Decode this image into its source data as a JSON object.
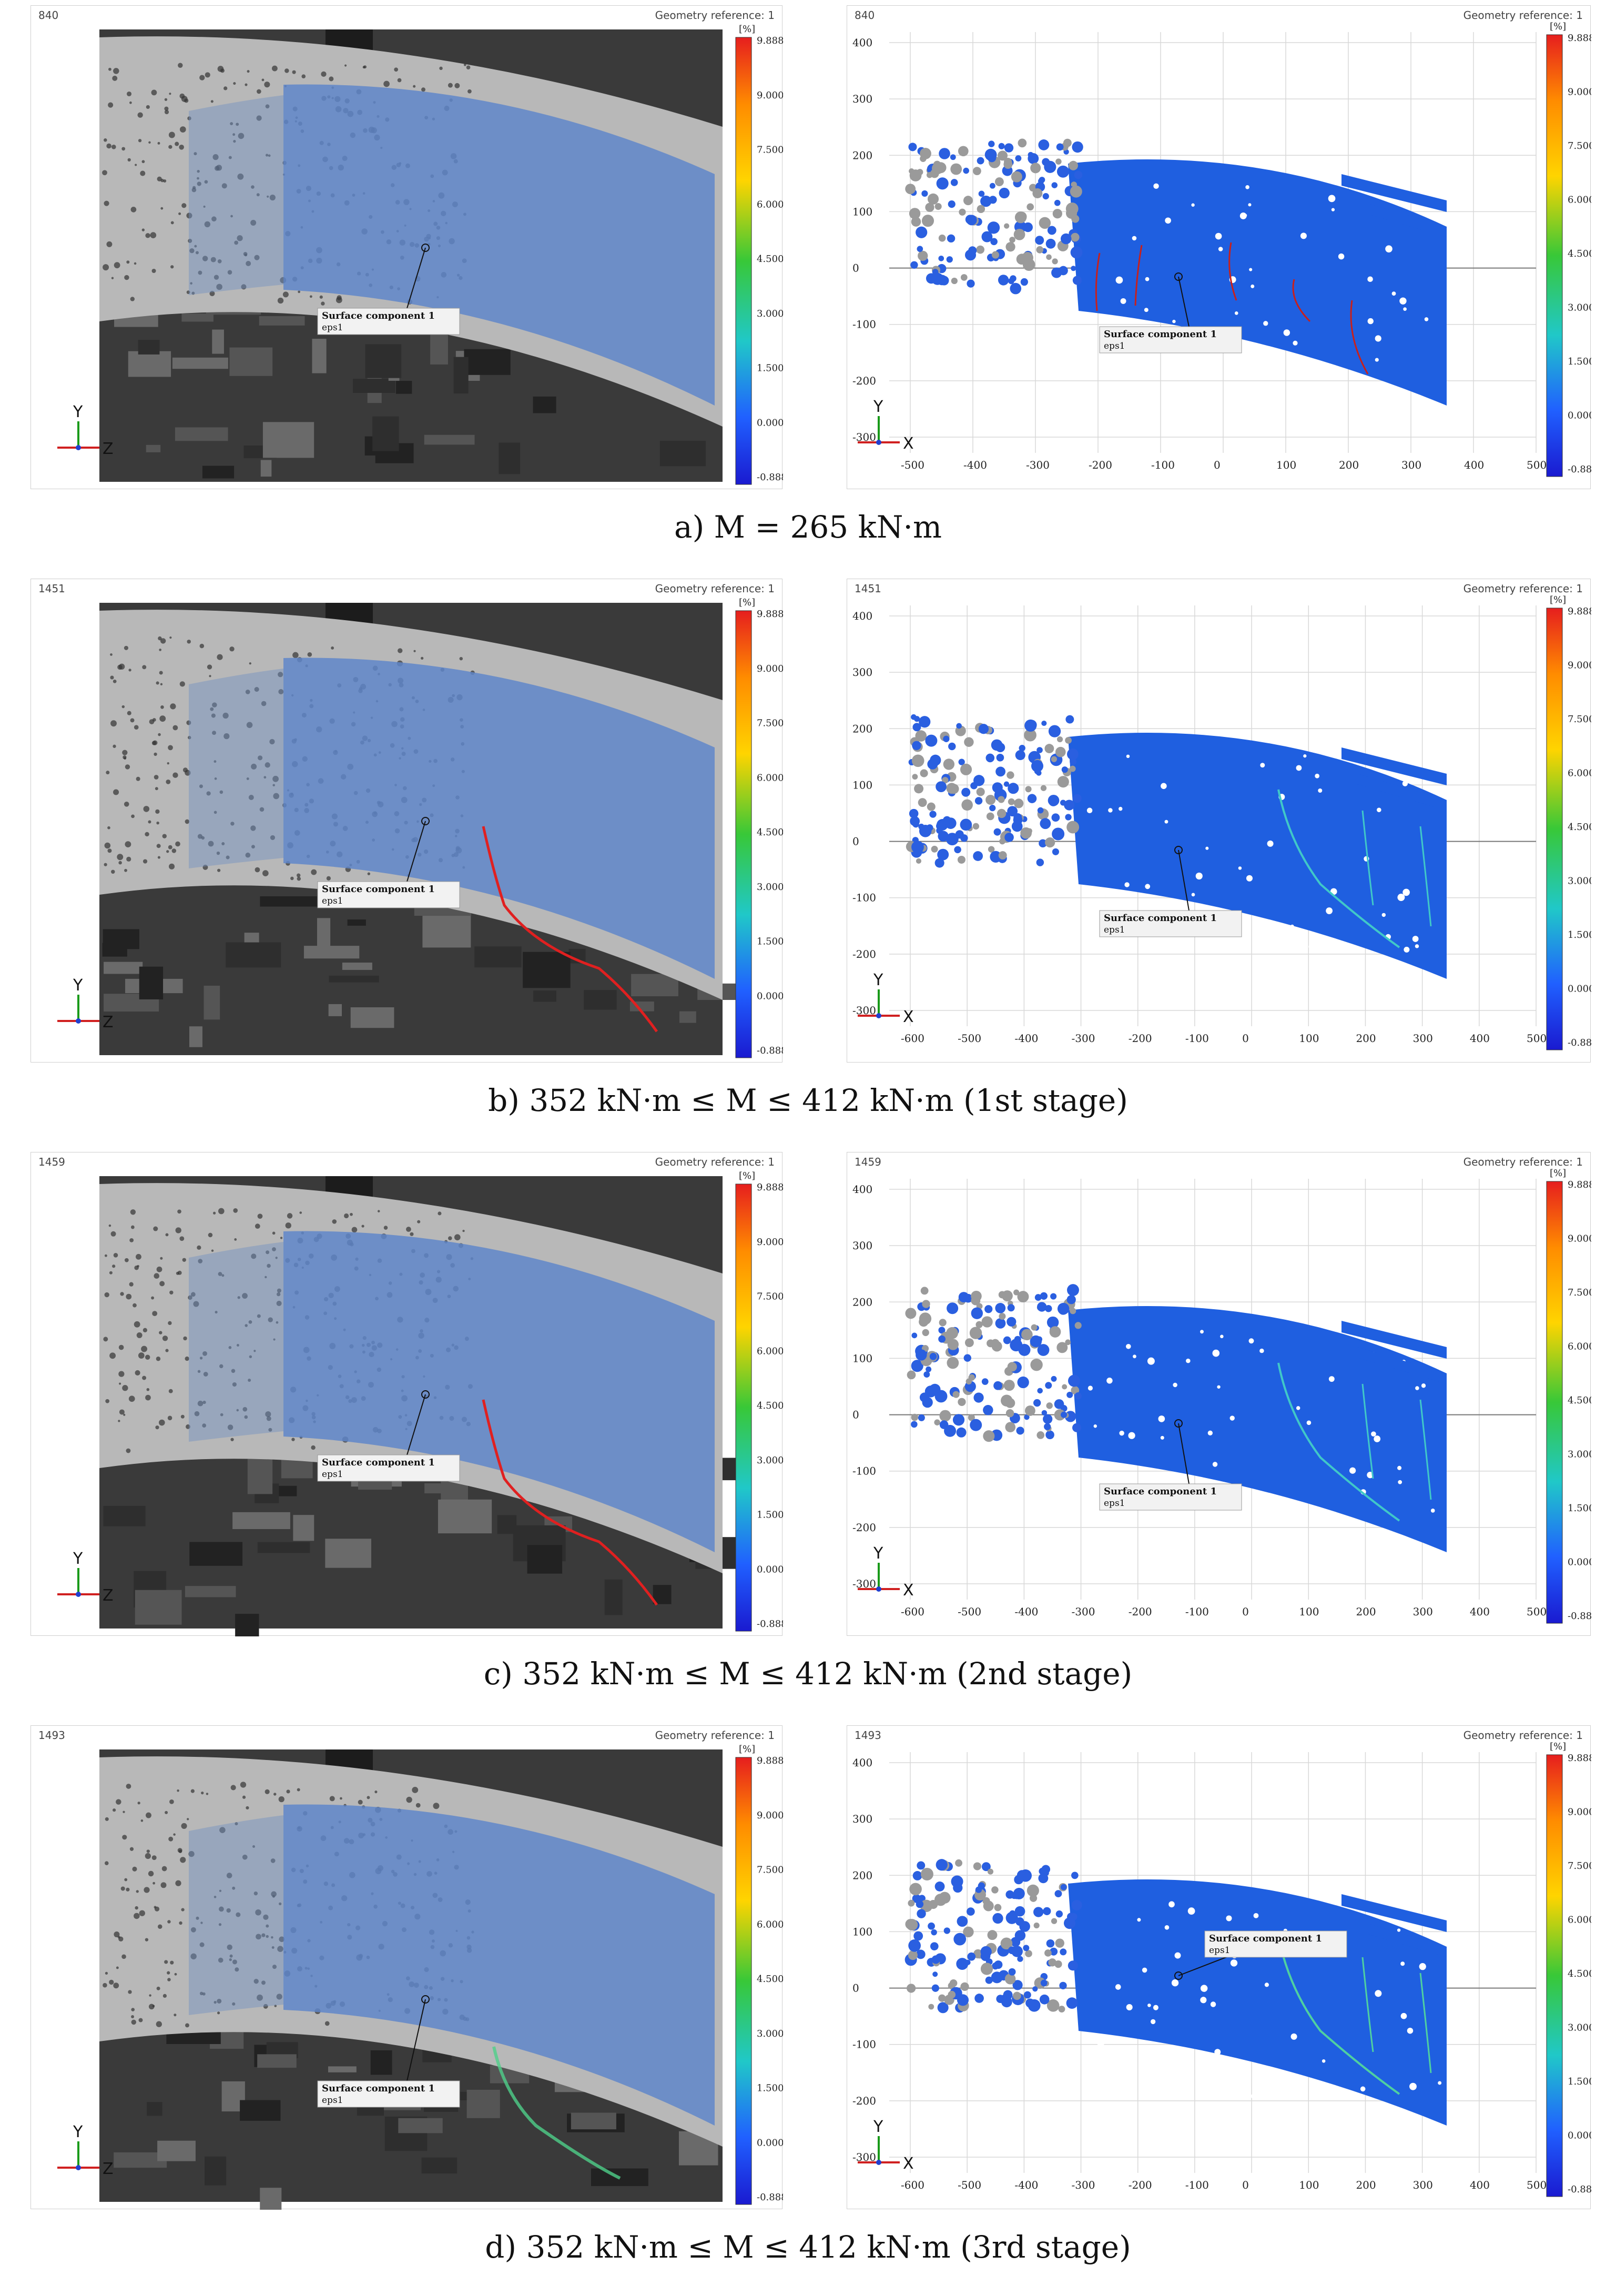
{
  "geometry_reference": "Geometry reference: 1",
  "unit": "[%]",
  "colorbar_ticks": [
    "9.888",
    "9.000",
    "7.500",
    "6.000",
    "4.500",
    "3.000",
    "1.500",
    "0.000",
    "-0.888"
  ],
  "label_box": {
    "title": "Surface component 1",
    "subtitle": "eps1"
  },
  "axes": {
    "x": "X",
    "y": "Y",
    "z": "Z"
  },
  "y_ticks": [
    "400",
    "300",
    "200",
    "100",
    "0",
    "-100",
    "-200",
    "-300"
  ],
  "x_ticks_a": [
    "-500",
    "-400",
    "-300",
    "-200",
    "-100",
    "0",
    "100",
    "200",
    "300",
    "400",
    "500"
  ],
  "x_ticks_b": [
    "-600",
    "-500",
    "-400",
    "-300",
    "-200",
    "-100",
    "0",
    "100",
    "200",
    "300",
    "400",
    "500"
  ],
  "panels": [
    {
      "frame": "840",
      "caption": "a) M = 265 kN·m"
    },
    {
      "frame": "1451",
      "caption": "b) 352 kN·m ≤ M ≤ 412 kN·m (1st stage)"
    },
    {
      "frame": "1459",
      "caption": "c) 352 kN·m ≤ M ≤ 412 kN·m (2nd stage)"
    },
    {
      "frame": "1493",
      "caption": "d) 352 kN·m ≤ M ≤ 412 kN·m (3rd stage)"
    }
  ],
  "colors": {
    "cb_top": "#e61e1e",
    "cb_mid": "#38c838",
    "cb_bottom": "#1a1ad0",
    "strain_blue": "#1f5fe0",
    "crack_red": "#c8201c"
  }
}
